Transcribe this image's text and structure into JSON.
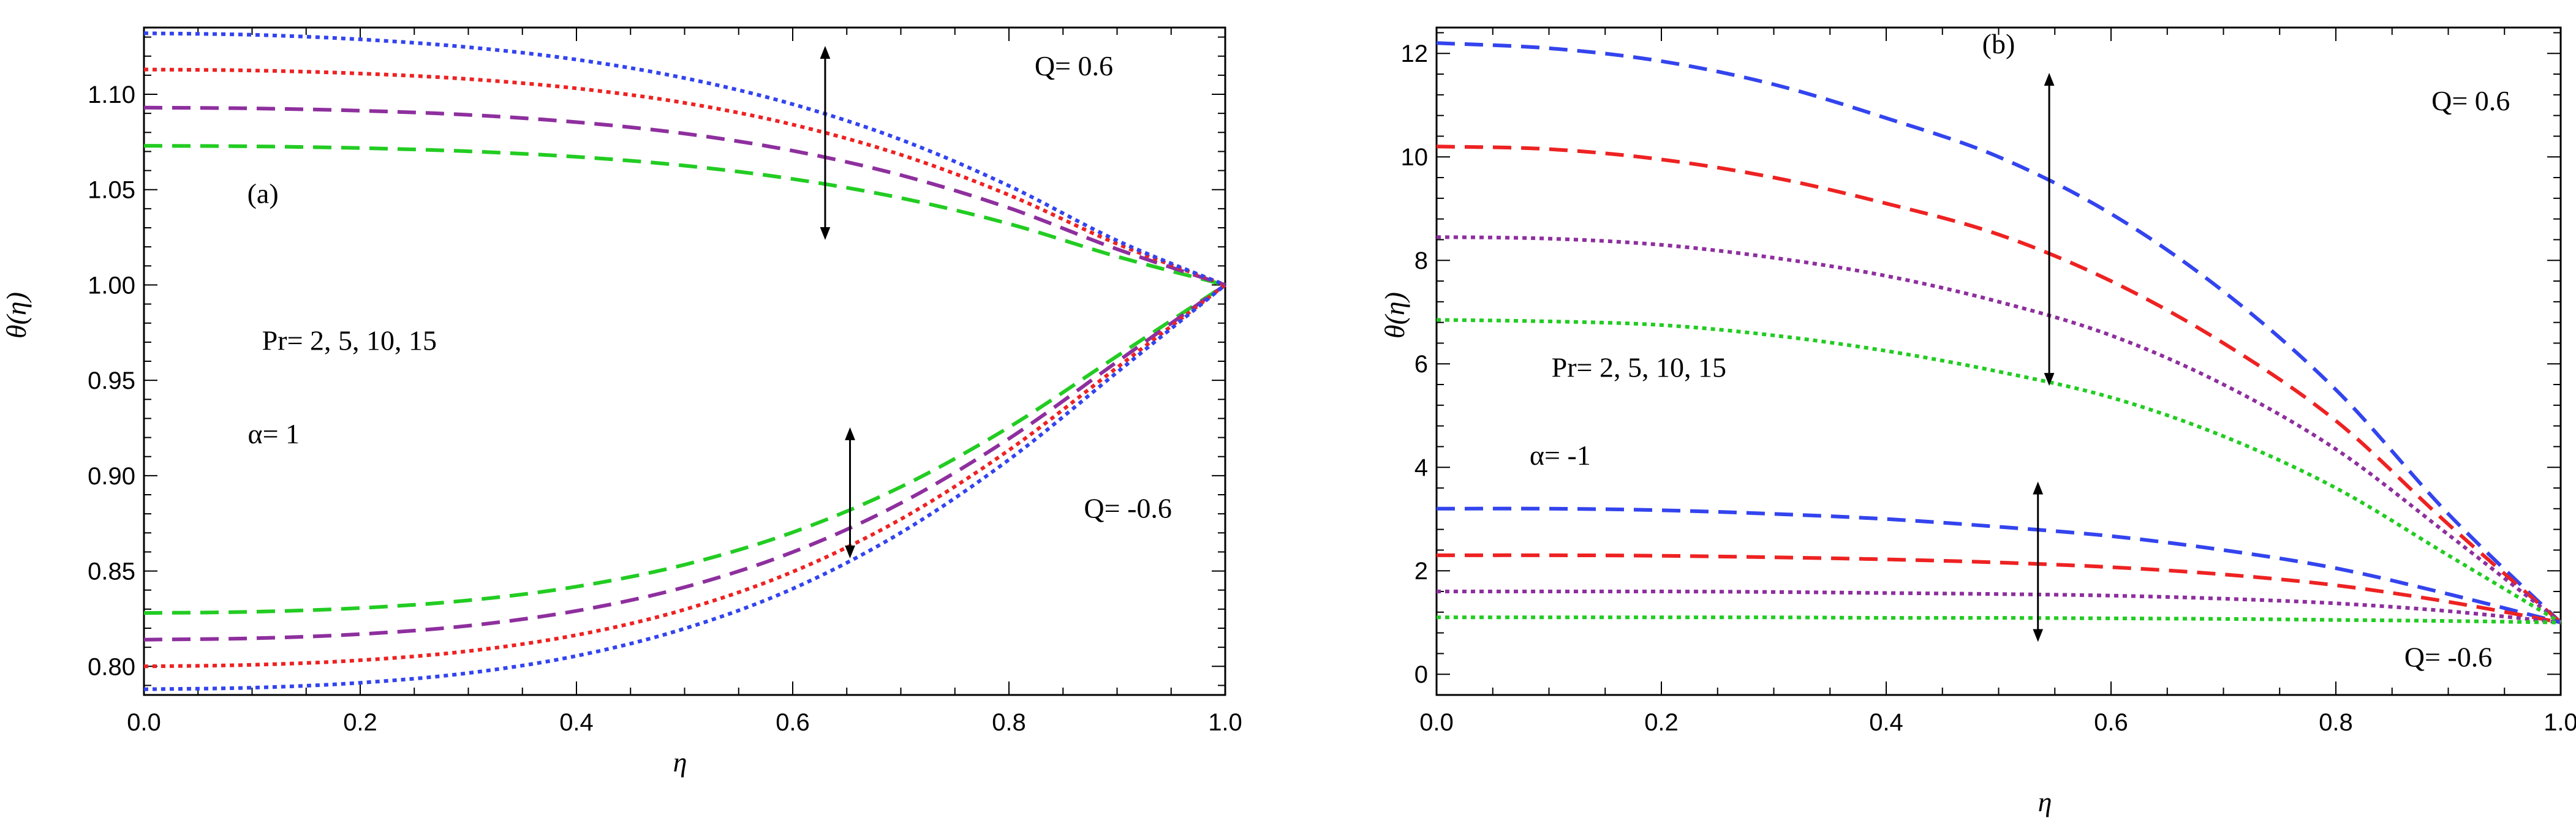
{
  "chart_data": [
    {
      "type": "line",
      "panel_label": "(a)",
      "xlabel": "η",
      "ylabel": "θ(η)",
      "xlim": [
        0,
        1
      ],
      "ylim": [
        0.785,
        1.135
      ],
      "xticks": [
        0.0,
        0.2,
        0.4,
        0.6,
        0.8,
        1.0
      ],
      "xtick_labels": [
        "0.0",
        "0.2",
        "0.4",
        "0.6",
        "0.8",
        "1.0"
      ],
      "yticks": [
        0.8,
        0.85,
        0.9,
        0.95,
        1.0,
        1.05,
        1.1
      ],
      "ytick_labels": [
        "0.80",
        "0.85",
        "0.90",
        "0.95",
        "1.00",
        "1.05",
        "1.10"
      ],
      "x": [
        0,
        0.1,
        0.2,
        0.3,
        0.4,
        0.5,
        0.6,
        0.7,
        0.8,
        0.9,
        1.0
      ],
      "series": [
        {
          "name": "Pr=2, Q=0.6",
          "group": "Q=0.6",
          "color": "#22cc22",
          "dash": "dashed",
          "values": [
            1.073,
            1.0727,
            1.0718,
            1.0701,
            1.0672,
            1.0626,
            1.0556,
            1.0456,
            1.0321,
            1.0149,
            1.0
          ]
        },
        {
          "name": "Pr=5, Q=0.6",
          "group": "Q=0.6",
          "color": "#8e2f9e",
          "dash": "dashed",
          "values": [
            1.093,
            1.0926,
            1.0914,
            1.0892,
            1.0854,
            1.0794,
            1.0704,
            1.0576,
            1.0404,
            1.0188,
            1.0
          ]
        },
        {
          "name": "Pr=10, Q=0.6",
          "group": "Q=0.6",
          "color": "#ee2222",
          "dash": "dotted",
          "values": [
            1.113,
            1.1125,
            1.1109,
            1.108,
            1.1031,
            1.0955,
            1.0841,
            1.0683,
            1.0472,
            1.0216,
            1.0
          ]
        },
        {
          "name": "Pr=15, Q=0.6",
          "group": "Q=0.6",
          "color": "#3344ee",
          "dash": "dotted",
          "values": [
            1.132,
            1.1312,
            1.1288,
            1.1247,
            1.1182,
            1.1085,
            1.0948,
            1.0762,
            1.052,
            1.0233,
            1.0
          ]
        },
        {
          "name": "Pr=2, Q=-0.6",
          "group": "Q=-0.6",
          "color": "#22cc22",
          "dash": "dashed",
          "values": [
            0.828,
            0.8286,
            0.8306,
            0.8346,
            0.8418,
            0.8533,
            0.8703,
            0.8941,
            0.9254,
            0.9627,
            1.0
          ]
        },
        {
          "name": "Pr=5, Q=-0.6",
          "group": "Q=-0.6",
          "color": "#8e2f9e",
          "dash": "dashed",
          "values": [
            0.814,
            0.8147,
            0.8169,
            0.8213,
            0.8291,
            0.8415,
            0.8599,
            0.8856,
            0.9194,
            0.9597,
            1.0
          ]
        },
        {
          "name": "Pr=10, Q=-0.6",
          "group": "Q=-0.6",
          "color": "#ee2222",
          "dash": "dotted",
          "values": [
            0.8,
            0.8008,
            0.8032,
            0.808,
            0.8164,
            0.8298,
            0.8496,
            0.8772,
            0.9134,
            0.9567,
            1.0
          ]
        },
        {
          "name": "Pr=15, Q=-0.6",
          "group": "Q=-0.6",
          "color": "#3344ee",
          "dash": "dotted",
          "values": [
            0.788,
            0.7888,
            0.7914,
            0.7965,
            0.8055,
            0.8198,
            0.8407,
            0.8701,
            0.9084,
            0.9542,
            1.0
          ]
        }
      ],
      "annotations": [
        {
          "text": "(a)",
          "x": 0.11,
          "y": 1.043
        },
        {
          "text": "Q= 0.6",
          "x": 0.86,
          "y": 1.11
        },
        {
          "text": "Q= -0.6",
          "x": 0.91,
          "y": 0.878
        },
        {
          "text": "Pr= 2, 5, 10, 15",
          "x": 0.19,
          "y": 0.966
        },
        {
          "text": "α= 1",
          "x": 0.12,
          "y": 0.917
        }
      ],
      "arrows": [
        {
          "x": 0.63,
          "y_from": 1.027,
          "y_to": 1.122
        },
        {
          "x": 0.653,
          "y_from": 0.86,
          "y_to": 0.922
        }
      ]
    },
    {
      "type": "line",
      "panel_label": "(b)",
      "xlabel": "η",
      "ylabel": "θ(η)",
      "xlim": [
        0,
        1
      ],
      "ylim": [
        -0.4,
        12.5
      ],
      "xticks": [
        0.0,
        0.2,
        0.4,
        0.6,
        0.8,
        1.0
      ],
      "xtick_labels": [
        "0.0",
        "0.2",
        "0.4",
        "0.6",
        "0.8",
        "1.0"
      ],
      "yticks": [
        0,
        2,
        4,
        6,
        8,
        10,
        12
      ],
      "ytick_labels": [
        "0",
        "2",
        "4",
        "6",
        "8",
        "10",
        "12"
      ],
      "x": [
        0,
        0.1,
        0.2,
        0.3,
        0.4,
        0.5,
        0.6,
        0.7,
        0.8,
        0.9,
        1.0
      ],
      "series": [
        {
          "name": "Pr=15, Q=0.6",
          "group": "Q=0.6",
          "color": "#3344ee",
          "dash": "dashed",
          "values": [
            12.2,
            12.1,
            11.85,
            11.4,
            10.75,
            10.0,
            8.9,
            7.4,
            5.5,
            3.1,
            1.0
          ]
        },
        {
          "name": "Pr=10, Q=0.6",
          "group": "Q=0.6",
          "color": "#ee2222",
          "dash": "dashed",
          "values": [
            10.2,
            10.15,
            9.95,
            9.6,
            9.1,
            8.5,
            7.6,
            6.4,
            4.9,
            2.9,
            1.0
          ]
        },
        {
          "name": "Pr=5, Q=0.6",
          "group": "Q=0.6",
          "color": "#8e2f9e",
          "dash": "dotted",
          "values": [
            8.45,
            8.42,
            8.3,
            8.05,
            7.7,
            7.2,
            6.55,
            5.6,
            4.35,
            2.7,
            1.0
          ]
        },
        {
          "name": "Pr=2, Q=0.6",
          "group": "Q=0.6",
          "color": "#22cc22",
          "dash": "dotted",
          "values": [
            6.85,
            6.82,
            6.75,
            6.55,
            6.25,
            5.85,
            5.35,
            4.6,
            3.6,
            2.3,
            1.0
          ]
        },
        {
          "name": "Pr=15, Q=-0.6",
          "group": "Q=-0.6",
          "color": "#3344ee",
          "dash": "dashed",
          "values": [
            3.2,
            3.2,
            3.17,
            3.1,
            3.0,
            2.85,
            2.67,
            2.4,
            2.05,
            1.55,
            1.0
          ]
        },
        {
          "name": "Pr=10, Q=-0.6",
          "group": "Q=-0.6",
          "color": "#ee2222",
          "dash": "dashed",
          "values": [
            2.3,
            2.3,
            2.29,
            2.26,
            2.22,
            2.16,
            2.07,
            1.93,
            1.72,
            1.4,
            1.0
          ]
        },
        {
          "name": "Pr=5, Q=-0.6",
          "group": "Q=-0.6",
          "color": "#8e2f9e",
          "dash": "dotted",
          "values": [
            1.6,
            1.6,
            1.6,
            1.59,
            1.57,
            1.55,
            1.52,
            1.46,
            1.37,
            1.22,
            1.0
          ]
        },
        {
          "name": "Pr=2, Q=-0.6",
          "group": "Q=-0.6",
          "color": "#22cc22",
          "dash": "dotted",
          "values": [
            1.1,
            1.1,
            1.1,
            1.1,
            1.09,
            1.09,
            1.08,
            1.07,
            1.05,
            1.03,
            1.0
          ]
        }
      ],
      "annotations": [
        {
          "text": "(b)",
          "x": 0.5,
          "y": 12.0
        },
        {
          "text": "Q= 0.6",
          "x": 0.92,
          "y": 10.9
        },
        {
          "text": "Q= -0.6",
          "x": 0.9,
          "y": 0.15
        },
        {
          "text": "Pr= 2, 5, 10, 15",
          "x": 0.18,
          "y": 5.75
        },
        {
          "text": "α= -1",
          "x": 0.11,
          "y": 4.05
        }
      ],
      "arrows": [
        {
          "x": 0.545,
          "y_from": 5.7,
          "y_to": 11.5
        },
        {
          "x": 0.535,
          "y_from": 0.75,
          "y_to": 3.6
        }
      ]
    }
  ]
}
